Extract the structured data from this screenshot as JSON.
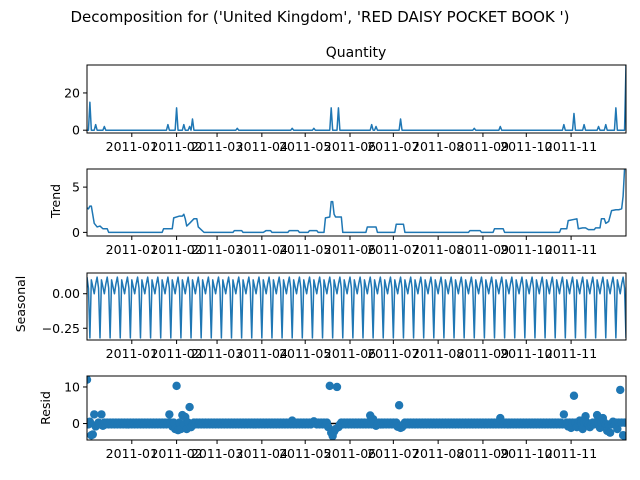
{
  "figure": {
    "title": "Decomposition for ('United Kingdom', 'RED DAISY POCKET BOOK ')"
  },
  "colors": {
    "series": "#1f77b4",
    "axis": "#000000",
    "background": "#ffffff"
  },
  "chart_data": [
    {
      "type": "line",
      "title": "Quantity",
      "ylabel": "",
      "ylim": [
        -1.5,
        35
      ],
      "yticks": [
        "0",
        "20"
      ],
      "ytick_values": [
        0,
        20
      ],
      "xlim": [
        "2010-12-01",
        "2011-12-09"
      ],
      "xticks": [
        "2011-01",
        "2011-02",
        "2011-03",
        "2011-04",
        "2011-05",
        "2011-06",
        "2011-07",
        "2011-08",
        "2011-09",
        "2011-10",
        "2011-11"
      ],
      "spikes": [
        [
          "2010-12-03",
          15
        ],
        [
          "2010-12-07",
          3
        ],
        [
          "2010-12-13",
          2
        ],
        [
          "2011-01-26",
          3
        ],
        [
          "2011-02-01",
          12
        ],
        [
          "2011-02-06",
          3
        ],
        [
          "2011-02-10",
          2
        ],
        [
          "2011-02-12",
          6
        ],
        [
          "2011-03-15",
          1
        ],
        [
          "2011-04-22",
          1
        ],
        [
          "2011-05-07",
          1
        ],
        [
          "2011-05-19",
          12
        ],
        [
          "2011-05-24",
          12
        ],
        [
          "2011-06-16",
          3
        ],
        [
          "2011-06-19",
          2
        ],
        [
          "2011-07-06",
          6
        ],
        [
          "2011-08-26",
          1
        ],
        [
          "2011-09-13",
          2
        ],
        [
          "2011-10-27",
          3
        ],
        [
          "2011-11-03",
          9
        ],
        [
          "2011-11-10",
          3
        ],
        [
          "2011-11-20",
          2
        ],
        [
          "2011-11-25",
          3
        ],
        [
          "2011-12-02",
          12
        ],
        [
          "2011-12-09",
          35
        ]
      ]
    },
    {
      "type": "line",
      "title": "",
      "ylabel": "Trend",
      "ylim": [
        -0.4,
        7
      ],
      "yticks": [
        "0",
        "5"
      ],
      "ytick_values": [
        0,
        5
      ],
      "xlim": [
        "2010-12-01",
        "2011-12-09"
      ],
      "xticks": [
        "2011-01",
        "2011-02",
        "2011-03",
        "2011-04",
        "2011-05",
        "2011-06",
        "2011-07",
        "2011-08",
        "2011-09",
        "2011-10",
        "2011-11"
      ],
      "points": [
        [
          "2010-12-01",
          2.7
        ],
        [
          "2010-12-02",
          2.6
        ],
        [
          "2010-12-03",
          2.9
        ],
        [
          "2010-12-04",
          2.9
        ],
        [
          "2010-12-06",
          1.0
        ],
        [
          "2010-12-08",
          0.6
        ],
        [
          "2010-12-10",
          0.7
        ],
        [
          "2010-12-12",
          0.4
        ],
        [
          "2010-12-15",
          0.4
        ],
        [
          "2010-12-16",
          0
        ],
        [
          "2011-01-22",
          0
        ],
        [
          "2011-01-23",
          0.4
        ],
        [
          "2011-01-29",
          0.4
        ],
        [
          "2011-01-30",
          1.6
        ],
        [
          "2011-02-03",
          1.8
        ],
        [
          "2011-02-05",
          1.8
        ],
        [
          "2011-02-06",
          2.0
        ],
        [
          "2011-02-07",
          1.5
        ],
        [
          "2011-02-08",
          0.7
        ],
        [
          "2011-02-10",
          1.0
        ],
        [
          "2011-02-13",
          1.5
        ],
        [
          "2011-02-15",
          1.5
        ],
        [
          "2011-02-16",
          0.6
        ],
        [
          "2011-02-18",
          0.3
        ],
        [
          "2011-02-20",
          0
        ],
        [
          "2011-03-12",
          0
        ],
        [
          "2011-03-13",
          0.2
        ],
        [
          "2011-03-18",
          0.2
        ],
        [
          "2011-03-19",
          0
        ],
        [
          "2011-04-02",
          0
        ],
        [
          "2011-04-04",
          0.2
        ],
        [
          "2011-04-07",
          0.2
        ],
        [
          "2011-04-08",
          0
        ],
        [
          "2011-04-19",
          0
        ],
        [
          "2011-04-20",
          0.2
        ],
        [
          "2011-04-26",
          0.2
        ],
        [
          "2011-04-27",
          0
        ],
        [
          "2011-05-03",
          0
        ],
        [
          "2011-05-04",
          0.2
        ],
        [
          "2011-05-09",
          0.2
        ],
        [
          "2011-05-10",
          0
        ],
        [
          "2011-05-14",
          0
        ],
        [
          "2011-05-15",
          1.6
        ],
        [
          "2011-05-18",
          1.7
        ],
        [
          "2011-05-19",
          3.4
        ],
        [
          "2011-05-20",
          3.4
        ],
        [
          "2011-05-21",
          2.0
        ],
        [
          "2011-05-22",
          1.7
        ],
        [
          "2011-05-26",
          1.7
        ],
        [
          "2011-05-27",
          0
        ],
        [
          "2011-06-12",
          0
        ],
        [
          "2011-06-13",
          0.6
        ],
        [
          "2011-06-19",
          0.6
        ],
        [
          "2011-06-20",
          0
        ],
        [
          "2011-07-02",
          0
        ],
        [
          "2011-07-03",
          0.9
        ],
        [
          "2011-07-08",
          0.9
        ],
        [
          "2011-07-09",
          0
        ],
        [
          "2011-08-22",
          0
        ],
        [
          "2011-08-23",
          0.2
        ],
        [
          "2011-08-30",
          0.2
        ],
        [
          "2011-08-31",
          0
        ],
        [
          "2011-09-08",
          0
        ],
        [
          "2011-09-09",
          0.4
        ],
        [
          "2011-09-15",
          0.4
        ],
        [
          "2011-09-16",
          0
        ],
        [
          "2011-10-24",
          0
        ],
        [
          "2011-10-25",
          0.4
        ],
        [
          "2011-10-29",
          0.4
        ],
        [
          "2011-10-30",
          1.3
        ],
        [
          "2011-11-05",
          1.5
        ],
        [
          "2011-11-06",
          0.4
        ],
        [
          "2011-11-09",
          0.5
        ],
        [
          "2011-11-11",
          0.5
        ],
        [
          "2011-11-13",
          0.3
        ],
        [
          "2011-11-17",
          0.3
        ],
        [
          "2011-11-18",
          0.5
        ],
        [
          "2011-11-21",
          0.5
        ],
        [
          "2011-11-22",
          1.5
        ],
        [
          "2011-11-24",
          1.5
        ],
        [
          "2011-11-25",
          1.0
        ],
        [
          "2011-11-27",
          1.2
        ],
        [
          "2011-11-29",
          2.4
        ],
        [
          "2011-12-02",
          2.5
        ],
        [
          "2011-12-04",
          2.5
        ],
        [
          "2011-12-06",
          2.6
        ],
        [
          "2011-12-07",
          4.0
        ],
        [
          "2011-12-08",
          7.0
        ]
      ]
    },
    {
      "type": "line",
      "title": "",
      "ylabel": "Seasonal",
      "ylim": [
        -0.335,
        0.15
      ],
      "yticks": [
        "0.00",
        "−0.25"
      ],
      "ytick_values": [
        0,
        -0.25
      ],
      "xlim": [
        "2010-12-01",
        "2011-12-09"
      ],
      "xticks": [
        "2011-01",
        "2011-02",
        "2011-03",
        "2011-04",
        "2011-05",
        "2011-06",
        "2011-07",
        "2011-08",
        "2011-09",
        "2011-10",
        "2011-11"
      ],
      "period_days": 7,
      "weekly_pattern": [
        0.12,
        0.04,
        -0.32,
        0.1,
        0.05,
        0.0,
        0.07
      ]
    },
    {
      "type": "scatter",
      "title": "",
      "ylabel": "Resid",
      "ylim": [
        -4.5,
        13
      ],
      "yticks": [
        "0",
        "10"
      ],
      "ytick_values": [
        0,
        10
      ],
      "xlim": [
        "2010-12-01",
        "2011-12-09"
      ],
      "xticks": [
        "2011-01",
        "2011-02",
        "2011-03",
        "2011-04",
        "2011-05",
        "2011-06",
        "2011-07",
        "2011-08",
        "2011-09",
        "2011-10",
        "2011-11"
      ],
      "baseline": 0,
      "outliers": [
        [
          "2010-12-01",
          12.0
        ],
        [
          "2010-12-03",
          0.5
        ],
        [
          "2010-12-04",
          -3.2
        ],
        [
          "2010-12-05",
          -3.0
        ],
        [
          "2010-12-06",
          2.5
        ],
        [
          "2010-12-07",
          -0.8
        ],
        [
          "2010-12-11",
          2.5
        ],
        [
          "2010-12-12",
          -0.6
        ],
        [
          "2011-01-27",
          2.5
        ],
        [
          "2011-01-29",
          -0.8
        ],
        [
          "2011-01-31",
          -1.5
        ],
        [
          "2011-02-01",
          10.3
        ],
        [
          "2011-02-02",
          -1.8
        ],
        [
          "2011-02-04",
          -1.5
        ],
        [
          "2011-02-05",
          2.3
        ],
        [
          "2011-02-07",
          1.8
        ],
        [
          "2011-02-08",
          -1.5
        ],
        [
          "2011-02-10",
          4.5
        ],
        [
          "2011-02-11",
          -1.0
        ],
        [
          "2011-04-22",
          0.8
        ],
        [
          "2011-05-07",
          0.6
        ],
        [
          "2011-05-17",
          -1.0
        ],
        [
          "2011-05-18",
          10.3
        ],
        [
          "2011-05-19",
          -2.5
        ],
        [
          "2011-05-20",
          -3.4
        ],
        [
          "2011-05-21",
          -2.2
        ],
        [
          "2011-05-22",
          -1.5
        ],
        [
          "2011-05-23",
          10.0
        ],
        [
          "2011-05-24",
          -1.0
        ],
        [
          "2011-06-15",
          2.2
        ],
        [
          "2011-06-17",
          1.2
        ],
        [
          "2011-06-19",
          -0.6
        ],
        [
          "2011-07-04",
          -0.9
        ],
        [
          "2011-07-05",
          5.0
        ],
        [
          "2011-07-06",
          -1.2
        ],
        [
          "2011-07-07",
          -1.0
        ],
        [
          "2011-09-13",
          1.5
        ],
        [
          "2011-10-27",
          2.5
        ],
        [
          "2011-10-30",
          -0.8
        ],
        [
          "2011-11-01",
          -1.2
        ],
        [
          "2011-11-03",
          7.6
        ],
        [
          "2011-11-05",
          -1.0
        ],
        [
          "2011-11-07",
          0.8
        ],
        [
          "2011-11-09",
          -1.5
        ],
        [
          "2011-11-11",
          2.0
        ],
        [
          "2011-11-14",
          -1.0
        ],
        [
          "2011-11-19",
          2.3
        ],
        [
          "2011-11-21",
          -1.2
        ],
        [
          "2011-11-23",
          1.5
        ],
        [
          "2011-11-26",
          -2.0
        ],
        [
          "2011-11-28",
          -2.5
        ],
        [
          "2011-11-30",
          0.5
        ],
        [
          "2011-12-03",
          -1.5
        ],
        [
          "2011-12-05",
          9.2
        ],
        [
          "2011-12-07",
          -3.2
        ],
        [
          "2011-12-09",
          -3.8
        ]
      ]
    }
  ]
}
